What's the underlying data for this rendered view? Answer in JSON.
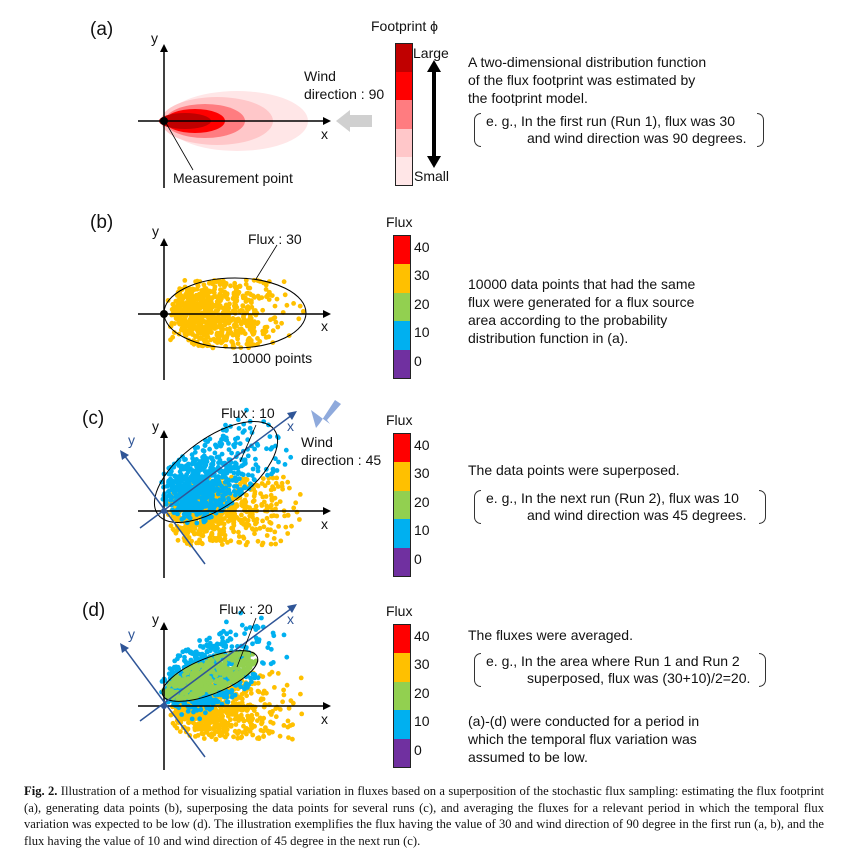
{
  "panels": {
    "a": {
      "label": "(a)",
      "axis_x": "x",
      "axis_y": "y",
      "wind_label_1": "Wind",
      "wind_label_2": "direction : 90",
      "measurement_label": "Measurement point",
      "legend_title": "Footprint ϕ",
      "legend_large": "Large",
      "legend_small": "Small",
      "legend_colors": [
        "#c00000",
        "#ff0000",
        "#ff7c80",
        "#ffc7c9",
        "#ffe6e7"
      ],
      "description": [
        "A two-dimensional distribution function",
        "of the flux footprint was estimated by",
        "the footprint model."
      ],
      "example": [
        "e. g., In the first run (Run 1), flux was 30",
        "and wind direction was 90 degrees."
      ]
    },
    "b": {
      "label": "(b)",
      "axis_x": "x",
      "axis_y": "y",
      "flux_label": "Flux : 30",
      "points_label": "10000 points",
      "legend_title": "Flux",
      "description": [
        "10000 data points that had the same",
        "flux were generated for a flux source",
        "area according to the probability",
        "distribution function in (a)."
      ]
    },
    "c": {
      "label": "(c)",
      "axis_x": "x",
      "axis_y": "y",
      "rot_axis_x": "x",
      "rot_axis_y": "y",
      "flux_label": "Flux : 10",
      "wind_label_1": "Wind",
      "wind_label_2": "direction : 45",
      "legend_title": "Flux",
      "description": [
        "The data points were superposed."
      ],
      "example": [
        "e. g., In the next run (Run 2), flux was 10",
        "and wind direction was 45 degrees."
      ]
    },
    "d": {
      "label": "(d)",
      "axis_x": "x",
      "axis_y": "y",
      "rot_axis_x": "x",
      "rot_axis_y": "y",
      "flux_label": "Flux : 20",
      "legend_title": "Flux",
      "description": [
        "The fluxes were averaged."
      ],
      "example": [
        "e. g., In the area where Run 1 and Run 2",
        "superposed, flux was (30+10)/2=20."
      ],
      "note": [
        "(a)-(d) were conducted for a period in",
        "which the temporal flux variation was",
        "assumed to be low."
      ]
    }
  },
  "flux_legend": {
    "ticks": [
      "40",
      "30",
      "20",
      "10",
      "0"
    ],
    "colors": [
      "#ff0000",
      "#ffc000",
      "#92d050",
      "#00b0f0",
      "#7030a0"
    ]
  },
  "colors": {
    "flux30": "#ffc000",
    "flux10": "#00b0f0",
    "flux20": "#92d050",
    "rotated_axis": "#2f5597",
    "wind_arrow_a": "#d0d0d0",
    "wind_arrow_c": "#8faadc"
  },
  "runs": [
    {
      "run": 1,
      "flux": 30,
      "wind_direction_deg": 90
    },
    {
      "run": 2,
      "flux": 10,
      "wind_direction_deg": 45
    }
  ],
  "caption": {
    "prefix": "Fig. 2.",
    "text": "Illustration of a method for visualizing spatial variation in fluxes based on a superposition of the stochastic flux sampling: estimating the flux footprint (a), generating data points (b), superposing the data points for several runs (c), and averaging the fluxes for a relevant period in which the temporal flux variation was expected to be low (d). The illustration exemplifies the flux having the value of 30 and wind direction of 90 degree in the first run (a, b), and the flux having the value of 10 and wind direction of 45 degree in the next run (c)."
  }
}
